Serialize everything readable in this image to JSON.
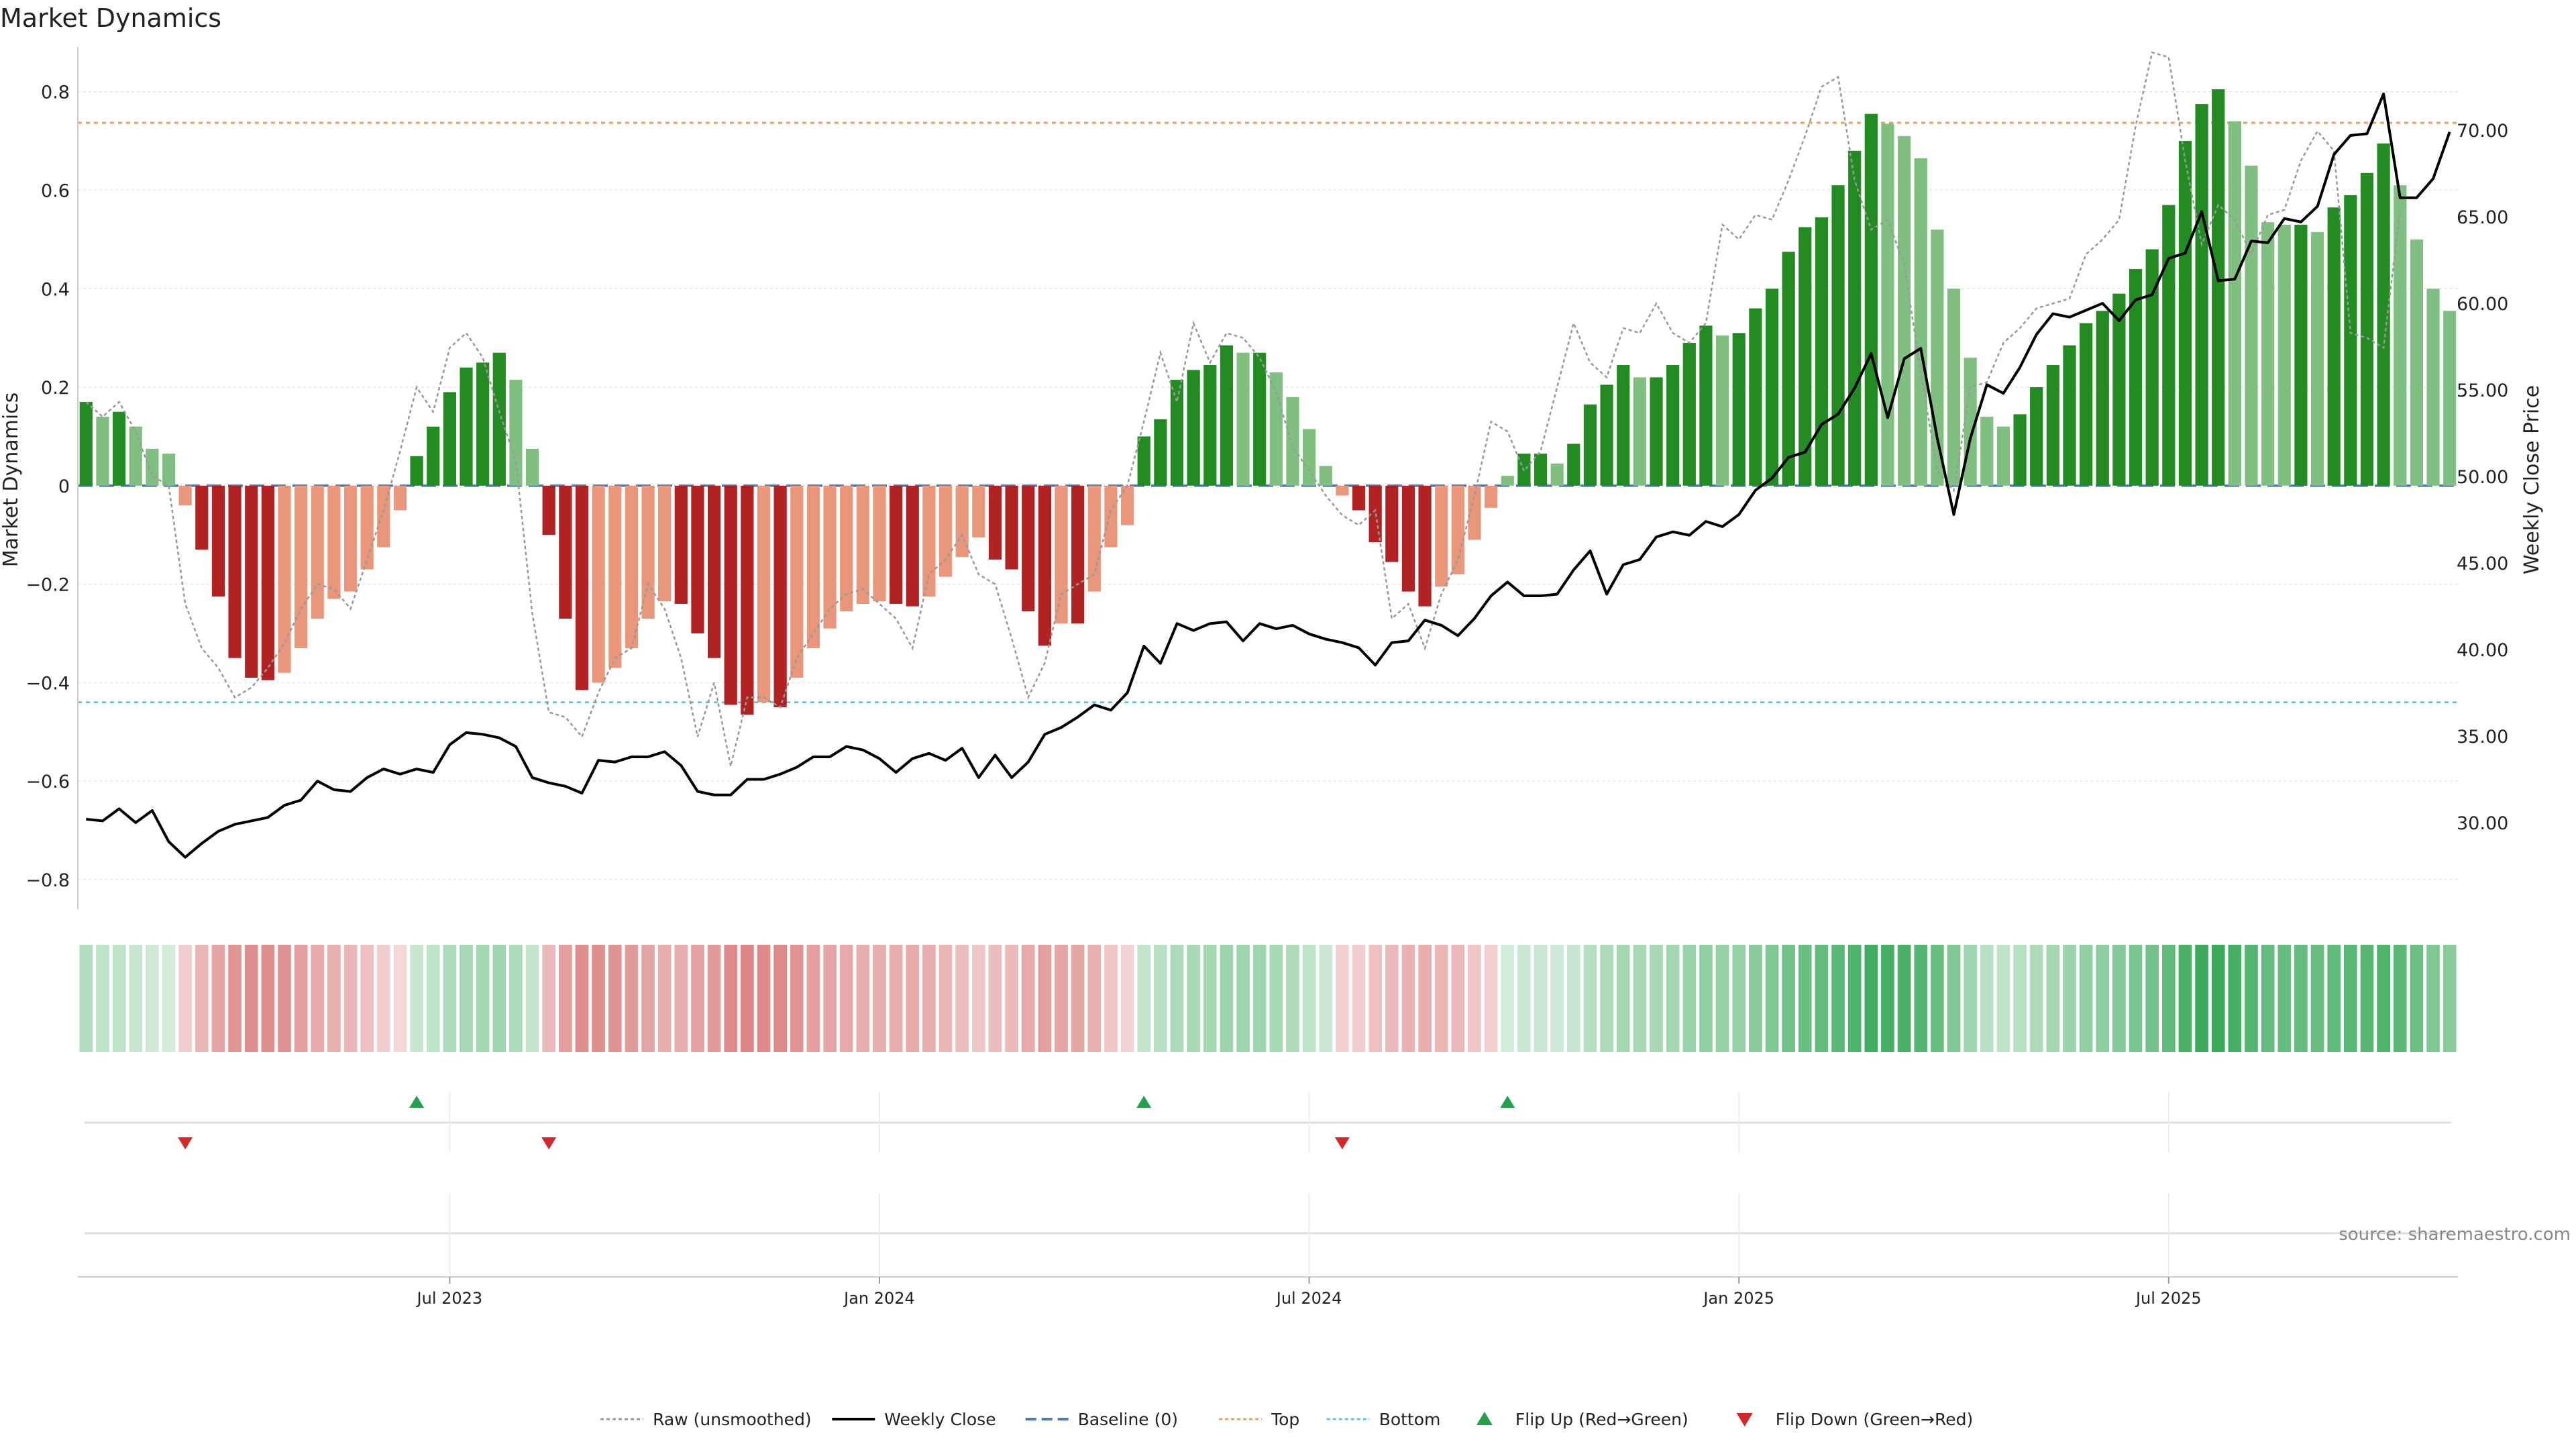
{
  "title": "Market Dynamics",
  "source": "source: sharemaestro.com",
  "colors": {
    "strong_green": "#228B22",
    "light_green": "#7FBF7F",
    "strong_red": "#B22222",
    "light_red": "#E9967A",
    "raw_line": "#999999",
    "close_line": "#000000",
    "baseline": "#4a7ab8",
    "top_line": "#e8a060",
    "bottom_line": "#5bc8d8",
    "flip_up": "#22a04a",
    "flip_down": "#d62728"
  },
  "legend": [
    {
      "label": "Raw (unsmoothed)",
      "kind": "dotted",
      "color": "#999999"
    },
    {
      "label": "Weekly Close",
      "kind": "solid",
      "color": "#000000"
    },
    {
      "label": "Baseline (0)",
      "kind": "dashed",
      "color": "#4a7ab8"
    },
    {
      "label": "Top",
      "kind": "dotted",
      "color": "#e8a060"
    },
    {
      "label": "Bottom",
      "kind": "dotted",
      "color": "#5bc8d8"
    },
    {
      "label": "Flip Up (Red→Green)",
      "kind": "tri-up",
      "color": "#22a04a"
    },
    {
      "label": "Flip Down (Green→Red)",
      "kind": "tri-down",
      "color": "#d62728"
    }
  ],
  "chart_data": {
    "type": "bar",
    "ylabel": "Market Dynamics",
    "y2label": "Weekly Close Price",
    "ylim": [
      -0.86,
      0.88
    ],
    "y2lim": [
      25.0,
      74.5
    ],
    "yticks": [
      -0.8,
      -0.6,
      -0.4,
      -0.2,
      0,
      0.2,
      0.4,
      0.6,
      0.8
    ],
    "ytick_labels": [
      "−0.8",
      "−0.6",
      "−0.4",
      "−0.2",
      "0",
      "0.2",
      "0.4",
      "0.6",
      "0.8"
    ],
    "y2ticks": [
      30,
      35,
      40,
      45,
      50,
      55,
      60,
      65,
      70
    ],
    "y2tick_labels": [
      "30.00",
      "35.00",
      "40.00",
      "45.00",
      "50.00",
      "55.00",
      "60.00",
      "65.00",
      "70.00"
    ],
    "xticks": [
      {
        "index": 22,
        "label": "Jul 2023"
      },
      {
        "index": 48,
        "label": "Jan 2024"
      },
      {
        "index": 74,
        "label": "Jul 2024"
      },
      {
        "index": 100,
        "label": "Jan 2025"
      },
      {
        "index": 126,
        "label": "Jul 2025"
      }
    ],
    "top": 0.737,
    "bottom": -0.44,
    "baseline": 0,
    "values": [
      0.17,
      0.14,
      0.15,
      0.12,
      0.075,
      0.065,
      -0.04,
      -0.13,
      -0.225,
      -0.35,
      -0.39,
      -0.395,
      -0.38,
      -0.33,
      -0.27,
      -0.23,
      -0.215,
      -0.17,
      -0.125,
      -0.05,
      0.06,
      0.12,
      0.19,
      0.24,
      0.25,
      0.27,
      0.215,
      0.075,
      -0.1,
      -0.27,
      -0.415,
      -0.4,
      -0.37,
      -0.33,
      -0.27,
      -0.235,
      -0.24,
      -0.3,
      -0.35,
      -0.445,
      -0.465,
      -0.44,
      -0.45,
      -0.39,
      -0.33,
      -0.29,
      -0.255,
      -0.24,
      -0.235,
      -0.24,
      -0.245,
      -0.225,
      -0.185,
      -0.145,
      -0.105,
      -0.15,
      -0.17,
      -0.255,
      -0.325,
      -0.28,
      -0.28,
      -0.215,
      -0.125,
      -0.08,
      0.1,
      0.135,
      0.215,
      0.235,
      0.245,
      0.285,
      0.27,
      0.27,
      0.23,
      0.18,
      0.115,
      0.04,
      -0.02,
      -0.05,
      -0.115,
      -0.155,
      -0.215,
      -0.245,
      -0.205,
      -0.18,
      -0.11,
      -0.045,
      0.02,
      0.065,
      0.065,
      0.045,
      0.085,
      0.165,
      0.205,
      0.245,
      0.22,
      0.22,
      0.245,
      0.29,
      0.325,
      0.305,
      0.31,
      0.36,
      0.4,
      0.475,
      0.525,
      0.545,
      0.61,
      0.68,
      0.755,
      0.735,
      0.71,
      0.665,
      0.52,
      0.4,
      0.26,
      0.14,
      0.12,
      0.145,
      0.2,
      0.245,
      0.285,
      0.33,
      0.355,
      0.39,
      0.44,
      0.48,
      0.57,
      0.7,
      0.775,
      0.805,
      0.74,
      0.65,
      0.535,
      0.53,
      0.53,
      0.515,
      0.565,
      0.59,
      0.635,
      0.695,
      0.61,
      0.5,
      0.4,
      0.355
    ],
    "raw": [
      0.17,
      0.14,
      0.17,
      0.11,
      0.02,
      0.0,
      -0.24,
      -0.33,
      -0.37,
      -0.43,
      -0.41,
      -0.37,
      -0.32,
      -0.25,
      -0.2,
      -0.21,
      -0.25,
      -0.15,
      -0.05,
      0.07,
      0.2,
      0.15,
      0.28,
      0.31,
      0.26,
      0.15,
      0.05,
      -0.26,
      -0.46,
      -0.47,
      -0.51,
      -0.42,
      -0.35,
      -0.33,
      -0.2,
      -0.25,
      -0.35,
      -0.51,
      -0.4,
      -0.57,
      -0.43,
      -0.43,
      -0.45,
      -0.35,
      -0.3,
      -0.25,
      -0.22,
      -0.21,
      -0.24,
      -0.27,
      -0.33,
      -0.18,
      -0.15,
      -0.1,
      -0.18,
      -0.2,
      -0.31,
      -0.43,
      -0.36,
      -0.22,
      -0.2,
      -0.18,
      -0.05,
      0.0,
      0.13,
      0.27,
      0.17,
      0.33,
      0.25,
      0.31,
      0.3,
      0.26,
      0.19,
      0.08,
      0.03,
      -0.02,
      -0.06,
      -0.08,
      -0.05,
      -0.27,
      -0.24,
      -0.33,
      -0.22,
      -0.15,
      -0.02,
      0.13,
      0.11,
      0.03,
      0.07,
      0.2,
      0.33,
      0.25,
      0.22,
      0.32,
      0.31,
      0.37,
      0.31,
      0.29,
      0.33,
      0.53,
      0.5,
      0.55,
      0.54,
      0.62,
      0.71,
      0.81,
      0.83,
      0.62,
      0.52,
      0.54,
      0.45,
      0.23,
      0.03,
      -0.01,
      0.2,
      0.21,
      0.29,
      0.32,
      0.36,
      0.37,
      0.38,
      0.47,
      0.5,
      0.54,
      0.73,
      0.88,
      0.87,
      0.66,
      0.49,
      0.57,
      0.54,
      0.47,
      0.55,
      0.56,
      0.66,
      0.72,
      0.68,
      0.31,
      0.3,
      0.28,
      0.56
    ],
    "close": [
      30.2,
      30.1,
      30.8,
      30.0,
      30.7,
      28.9,
      28.0,
      28.8,
      29.5,
      29.9,
      30.1,
      30.3,
      31.0,
      31.3,
      32.4,
      31.9,
      31.8,
      32.6,
      33.1,
      32.8,
      33.1,
      32.9,
      34.5,
      35.2,
      35.1,
      34.9,
      34.4,
      32.6,
      32.3,
      32.1,
      31.7,
      33.6,
      33.5,
      33.8,
      33.8,
      34.1,
      33.3,
      31.8,
      31.6,
      31.6,
      32.5,
      32.5,
      32.8,
      33.2,
      33.8,
      33.8,
      34.4,
      34.2,
      33.7,
      32.9,
      33.7,
      34.0,
      33.6,
      34.3,
      32.6,
      33.9,
      32.6,
      33.5,
      35.1,
      35.5,
      36.1,
      36.8,
      36.5,
      37.5,
      40.2,
      39.2,
      41.5,
      41.1,
      41.5,
      41.6,
      40.5,
      41.5,
      41.2,
      41.4,
      40.9,
      40.6,
      40.4,
      40.1,
      39.1,
      40.4,
      40.5,
      41.7,
      41.4,
      40.8,
      41.8,
      43.1,
      43.9,
      43.1,
      43.1,
      43.2,
      44.6,
      45.7,
      43.2,
      44.9,
      45.2,
      46.5,
      46.8,
      46.6,
      47.4,
      47.1,
      47.8,
      49.2,
      49.9,
      51.1,
      51.4,
      53.0,
      53.6,
      55.1,
      57.1,
      53.4,
      56.8,
      57.4,
      52.2,
      47.8,
      52.2,
      55.3,
      54.8,
      56.3,
      58.2,
      59.4,
      59.2,
      59.6,
      60.0,
      59.0,
      60.2,
      60.5,
      62.6,
      62.9,
      65.3,
      61.3,
      61.4,
      63.6,
      63.5,
      64.9,
      64.7,
      65.6,
      68.6,
      69.7,
      69.8,
      72.1,
      66.1,
      66.1,
      67.2,
      69.9
    ],
    "heat": [
      0.35,
      0.3,
      0.3,
      0.26,
      0.22,
      0.2,
      -0.26,
      -0.38,
      -0.46,
      -0.55,
      -0.58,
      -0.58,
      -0.56,
      -0.5,
      -0.44,
      -0.4,
      -0.38,
      -0.32,
      -0.26,
      -0.2,
      0.26,
      0.3,
      0.36,
      0.4,
      0.42,
      0.44,
      0.38,
      0.28,
      -0.36,
      -0.5,
      -0.58,
      -0.58,
      -0.56,
      -0.52,
      -0.46,
      -0.42,
      -0.42,
      -0.48,
      -0.52,
      -0.6,
      -0.62,
      -0.6,
      -0.6,
      -0.55,
      -0.5,
      -0.46,
      -0.44,
      -0.42,
      -0.42,
      -0.42,
      -0.44,
      -0.42,
      -0.38,
      -0.34,
      -0.3,
      -0.34,
      -0.36,
      -0.44,
      -0.5,
      -0.46,
      -0.46,
      -0.4,
      -0.3,
      -0.22,
      0.28,
      0.32,
      0.38,
      0.4,
      0.42,
      0.45,
      0.44,
      0.44,
      0.4,
      0.36,
      0.3,
      0.24,
      -0.24,
      -0.26,
      -0.32,
      -0.36,
      -0.4,
      -0.42,
      -0.38,
      -0.36,
      -0.3,
      -0.24,
      0.2,
      0.24,
      0.24,
      0.22,
      0.26,
      0.34,
      0.38,
      0.42,
      0.4,
      0.4,
      0.42,
      0.46,
      0.5,
      0.48,
      0.48,
      0.54,
      0.58,
      0.64,
      0.68,
      0.7,
      0.74,
      0.8,
      0.86,
      0.84,
      0.82,
      0.78,
      0.68,
      0.58,
      0.44,
      0.32,
      0.3,
      0.33,
      0.38,
      0.42,
      0.46,
      0.5,
      0.52,
      0.56,
      0.6,
      0.64,
      0.72,
      0.82,
      0.88,
      0.9,
      0.84,
      0.78,
      0.7,
      0.7,
      0.7,
      0.68,
      0.72,
      0.74,
      0.76,
      0.8,
      0.74,
      0.66,
      0.58,
      0.54
    ],
    "flip_up_indices": [
      20,
      64,
      86
    ],
    "flip_down_indices": [
      6,
      28,
      76
    ]
  }
}
